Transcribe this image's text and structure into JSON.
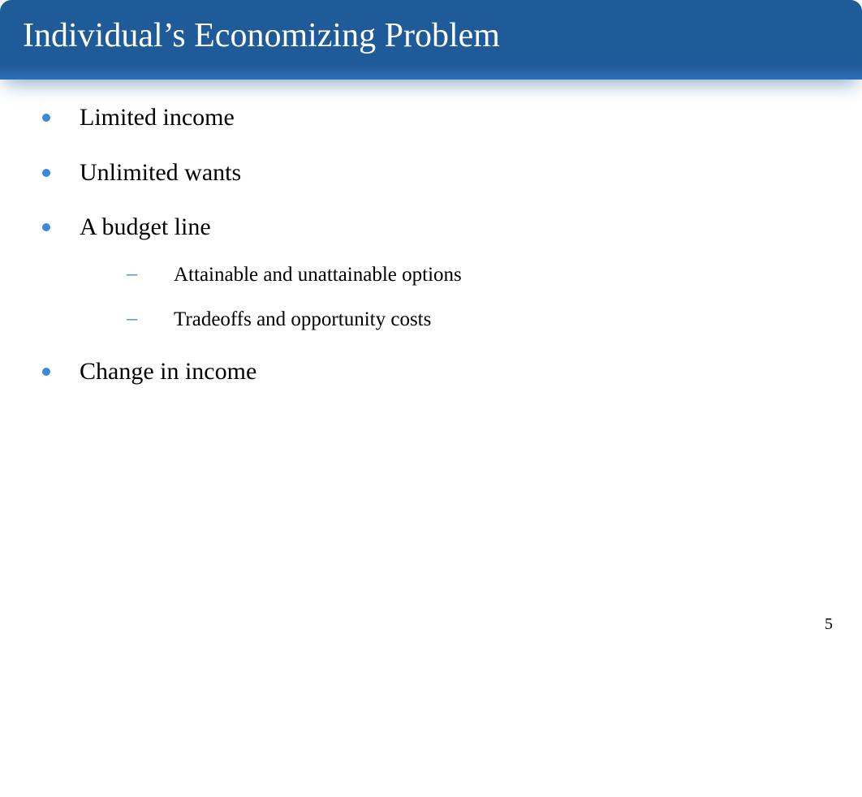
{
  "slide": {
    "title": "Individual’s Economizing Problem",
    "bullets": [
      {
        "text": "Limited income",
        "children": []
      },
      {
        "text": "Unlimited wants",
        "children": []
      },
      {
        "text": "A budget line",
        "children": [
          {
            "text": "Attainable and unattainable options"
          },
          {
            "text": "Tradeoffs and opportunity costs"
          }
        ]
      },
      {
        "text": "Change in income",
        "children": []
      }
    ],
    "page_number": "5"
  },
  "styling": {
    "header_bg_color": "#1f5a99",
    "header_text_color": "#ffffff",
    "header_fontsize": 42,
    "header_border_radius": 14,
    "bullet_color": "#3b8ad9",
    "bullet_text_color": "#000000",
    "bullet_fontsize": 30,
    "sub_bullet_fontsize": 25,
    "sub_bullet_marker": "–",
    "background_color": "#ffffff",
    "font_family": "Georgia, Times New Roman, serif",
    "slide_width": 1062,
    "slide_height": 982
  }
}
